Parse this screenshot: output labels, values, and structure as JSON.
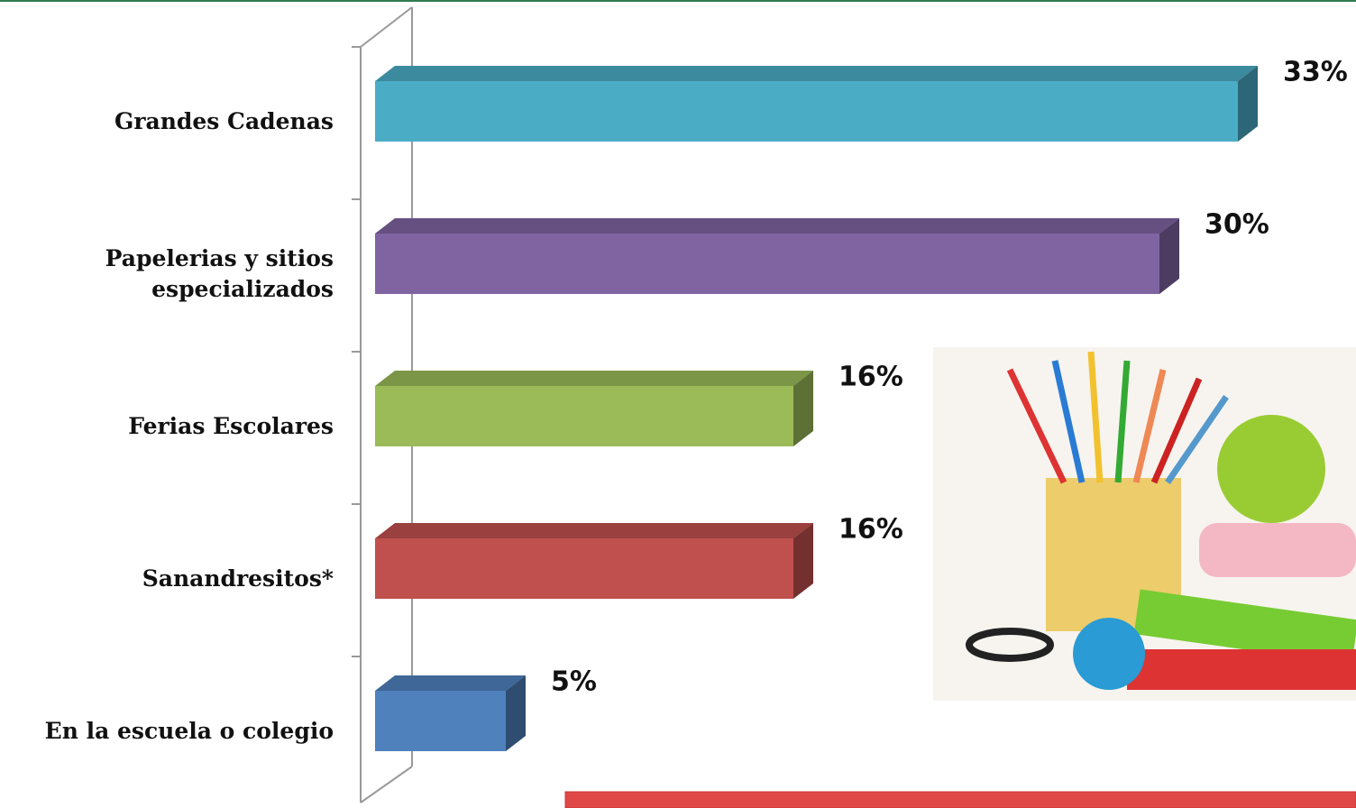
{
  "chart_data": {
    "type": "bar3d",
    "orientation": "horizontal",
    "categories": [
      "Grandes Cadenas",
      "Papelerias y sitios\nespecializados",
      "Ferias Escolares",
      "Sanandresitos*",
      "En la escuela o colegio"
    ],
    "values": [
      33,
      30,
      16,
      16,
      5
    ],
    "value_labels": [
      "33%",
      "30%",
      "16%",
      "16%",
      "5%"
    ],
    "colors": [
      "#4bacc6",
      "#8064a2",
      "#9bbb59",
      "#c0504d",
      "#4f81bd"
    ]
  }
}
